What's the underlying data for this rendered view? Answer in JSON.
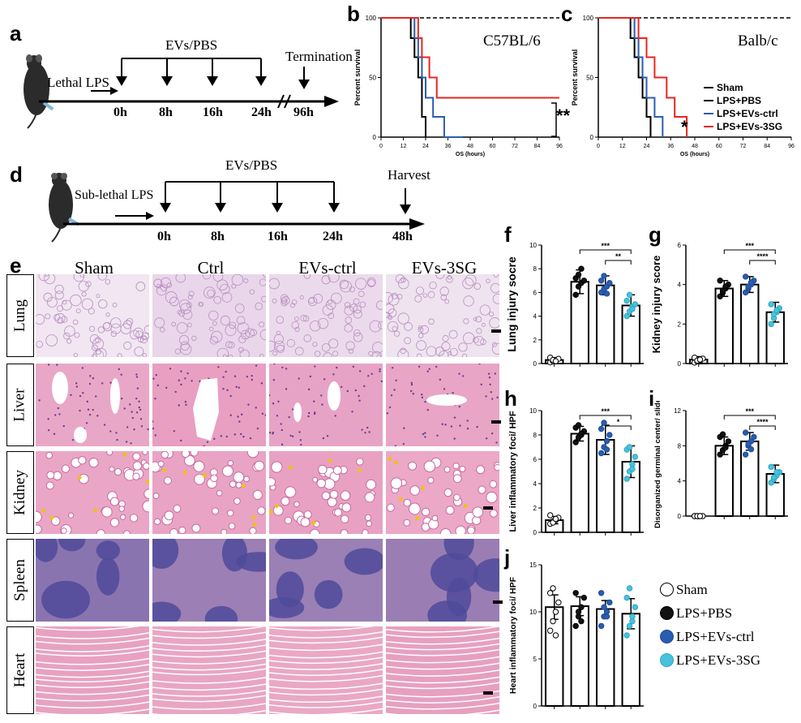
{
  "panels": {
    "a": {
      "label": "a",
      "treatment": "EVs/PBS",
      "induction": "Lethal LPS",
      "termination": "Termination",
      "timepoints": [
        "0h",
        "8h",
        "16h",
        "24h",
        "96h"
      ]
    },
    "b": {
      "label": "b",
      "strain": "C57BL/6",
      "significance": "**",
      "chart_ref": "b"
    },
    "c": {
      "label": "c",
      "strain": "Balb/c",
      "significance": "*",
      "legend": [
        "Sham",
        "LPS+PBS",
        "LPS+EVs-ctrl",
        "LPS+EVs-3SG"
      ]
    },
    "d": {
      "label": "d",
      "treatment": "EVs/PBS",
      "induction": "Sub-lethal LPS",
      "harvest": "Harvest",
      "timepoints": [
        "0h",
        "8h",
        "16h",
        "24h",
        "48h"
      ]
    },
    "e": {
      "label": "e",
      "columns": [
        "Sham",
        "Ctrl",
        "EVs-ctrl",
        "EVs-3SG"
      ],
      "rows": [
        "Lung",
        "Liver",
        "Kidney",
        "Spleen",
        "Heart"
      ]
    },
    "f": {
      "label": "f"
    },
    "g": {
      "label": "g"
    },
    "h": {
      "label": "h"
    },
    "i": {
      "label": "i"
    },
    "j": {
      "label": "j"
    }
  },
  "legend_bottom": [
    "Sham",
    "LPS+PBS",
    "LPS+EVs-ctrl",
    "LPS+EVs-3SG"
  ],
  "colors": {
    "sham": "#000000",
    "pbs": "#000000",
    "evs_ctrl": "#2a5db0",
    "evs_3sg": "#e8261f",
    "dot_pbs": "#111111",
    "dot_evs_ctrl": "#2a5db0",
    "dot_evs_3sg": "#49c2dc"
  },
  "chart_data": [
    {
      "id": "b",
      "type": "line",
      "xlabel": "OS (hours)",
      "ylabel": "Percent survival",
      "xlim": [
        0,
        96
      ],
      "ylim": [
        0,
        100
      ],
      "xticks": [
        0,
        12,
        24,
        36,
        48,
        60,
        72,
        84,
        96
      ],
      "yticks": [
        0,
        50,
        100
      ],
      "series": [
        {
          "name": "Sham",
          "style": "dashed",
          "x": [
            0,
            96
          ],
          "y": [
            100,
            100
          ]
        },
        {
          "name": "LPS+PBS",
          "x": [
            0,
            16,
            16,
            18,
            18,
            20,
            20,
            22,
            22,
            24,
            24
          ],
          "y": [
            100,
            100,
            83,
            83,
            67,
            67,
            50,
            50,
            17,
            17,
            0
          ]
        },
        {
          "name": "LPS+EVs-ctrl",
          "x": [
            0,
            18,
            18,
            20,
            20,
            22,
            22,
            24,
            24,
            28,
            28,
            34,
            34,
            44,
            44
          ],
          "y": [
            100,
            100,
            83,
            83,
            67,
            67,
            50,
            50,
            33,
            33,
            17,
            17,
            0,
            0,
            0
          ]
        },
        {
          "name": "LPS+EVs-3SG",
          "x": [
            0,
            20,
            20,
            22,
            22,
            26,
            26,
            30,
            30,
            96
          ],
          "y": [
            100,
            100,
            83,
            83,
            67,
            67,
            50,
            50,
            33,
            33
          ]
        }
      ]
    },
    {
      "id": "c",
      "type": "line",
      "xlabel": "OS (hours)",
      "ylabel": "Percent survival",
      "xlim": [
        0,
        96
      ],
      "ylim": [
        0,
        100
      ],
      "xticks": [
        0,
        12,
        24,
        36,
        48,
        60,
        72,
        84,
        96
      ],
      "yticks": [
        0,
        50,
        100
      ],
      "series": [
        {
          "name": "Sham",
          "style": "dashed",
          "x": [
            0,
            96
          ],
          "y": [
            100,
            100
          ]
        },
        {
          "name": "LPS+PBS",
          "x": [
            0,
            16,
            16,
            18,
            18,
            20,
            20,
            22,
            22,
            24,
            24,
            26,
            26
          ],
          "y": [
            100,
            100,
            83,
            83,
            67,
            67,
            50,
            50,
            33,
            33,
            17,
            17,
            0
          ]
        },
        {
          "name": "LPS+EVs-ctrl",
          "x": [
            0,
            18,
            18,
            20,
            20,
            22,
            22,
            24,
            24,
            28,
            28,
            32,
            32
          ],
          "y": [
            100,
            100,
            83,
            83,
            67,
            67,
            50,
            50,
            33,
            33,
            17,
            17,
            0
          ]
        },
        {
          "name": "LPS+EVs-3SG",
          "x": [
            0,
            20,
            20,
            24,
            24,
            28,
            28,
            34,
            34,
            38,
            38,
            44,
            44
          ],
          "y": [
            100,
            100,
            83,
            83,
            67,
            67,
            50,
            50,
            33,
            33,
            17,
            17,
            0
          ]
        }
      ]
    },
    {
      "id": "f",
      "type": "bar",
      "ylabel": "Lung injury socre",
      "ylim": [
        0,
        10
      ],
      "yticks": [
        0,
        2,
        4,
        6,
        8,
        10
      ],
      "categories": [
        "Sham",
        "LPS+PBS",
        "LPS+EVs-ctrl",
        "LPS+EVs-3SG"
      ],
      "values": [
        0.3,
        6.9,
        6.6,
        4.9
      ],
      "errors": [
        0.2,
        1.0,
        0.8,
        0.9
      ],
      "points": [
        [
          0.1,
          0.2,
          0.3,
          0.4,
          0.5,
          0.3,
          0.2
        ],
        [
          5.8,
          6.5,
          6.8,
          7.0,
          7.2,
          7.5,
          8.0
        ],
        [
          6.0,
          6.3,
          6.5,
          6.8,
          7.0,
          7.4,
          5.9
        ],
        [
          4.0,
          4.4,
          4.8,
          5.0,
          5.3,
          5.8,
          4.6
        ]
      ],
      "brackets": [
        {
          "from": 1,
          "to": 3,
          "label": "***"
        },
        {
          "from": 2,
          "to": 3,
          "label": "**"
        }
      ]
    },
    {
      "id": "g",
      "type": "bar",
      "ylabel": "Kidney injury score",
      "ylim": [
        0,
        6
      ],
      "yticks": [
        0,
        2,
        4,
        6
      ],
      "categories": [
        "Sham",
        "LPS+PBS",
        "LPS+EVs-ctrl",
        "LPS+EVs-3SG"
      ],
      "values": [
        0.2,
        3.8,
        4.0,
        2.6
      ],
      "errors": [
        0.15,
        0.4,
        0.4,
        0.5
      ],
      "points": [
        [
          0.05,
          0.1,
          0.2,
          0.25,
          0.3,
          0.15,
          0.2
        ],
        [
          3.4,
          3.6,
          3.8,
          4.0,
          4.2,
          3.7,
          3.9
        ],
        [
          3.6,
          3.8,
          4.0,
          4.2,
          4.4,
          3.9,
          4.1
        ],
        [
          2.0,
          2.3,
          2.6,
          2.8,
          3.0,
          2.5,
          2.7
        ]
      ],
      "brackets": [
        {
          "from": 1,
          "to": 3,
          "label": "***"
        },
        {
          "from": 2,
          "to": 3,
          "label": "****"
        }
      ]
    },
    {
      "id": "h",
      "type": "bar",
      "ylabel": "Liver inflammatory foci/ HPF",
      "ylim": [
        0,
        10
      ],
      "yticks": [
        0,
        2,
        4,
        6,
        8,
        10
      ],
      "categories": [
        "Sham",
        "LPS+PBS",
        "LPS+EVs-ctrl",
        "LPS+EVs-3SG"
      ],
      "values": [
        1.0,
        8.1,
        7.6,
        5.8
      ],
      "errors": [
        0.3,
        0.6,
        1.2,
        1.3
      ],
      "points": [
        [
          0.7,
          0.9,
          1.0,
          1.2,
          1.4,
          0.8,
          1.1
        ],
        [
          7.4,
          7.8,
          8.0,
          8.3,
          8.6,
          8.8,
          8.1
        ],
        [
          6.5,
          7.0,
          7.5,
          8.0,
          8.5,
          9.0,
          6.8
        ],
        [
          4.4,
          5.0,
          5.6,
          6.2,
          6.8,
          7.0,
          5.2
        ]
      ],
      "brackets": [
        {
          "from": 1,
          "to": 3,
          "label": "***"
        },
        {
          "from": 2,
          "to": 3,
          "label": "*"
        }
      ]
    },
    {
      "id": "i",
      "type": "bar",
      "ylabel": "Disorganized germinal center/ slide",
      "ylim": [
        0,
        12
      ],
      "yticks": [
        0,
        4,
        8,
        12
      ],
      "categories": [
        "Sham",
        "LPS+PBS",
        "LPS+EVs-ctrl",
        "LPS+EVs-3SG"
      ],
      "values": [
        0.0,
        8.0,
        8.5,
        4.8
      ],
      "errors": [
        0.1,
        1.0,
        1.0,
        1.0
      ],
      "points": [
        [
          0,
          0,
          0,
          0,
          0,
          0,
          0
        ],
        [
          7.0,
          7.5,
          8.0,
          8.5,
          9.0,
          9.3,
          7.8
        ],
        [
          7.0,
          8.0,
          8.5,
          9.0,
          9.5,
          8.2,
          7.6
        ],
        [
          3.8,
          4.2,
          4.6,
          5.0,
          5.6,
          4.4,
          5.0
        ]
      ],
      "brackets": [
        {
          "from": 1,
          "to": 3,
          "label": "***"
        },
        {
          "from": 2,
          "to": 3,
          "label": "****"
        }
      ]
    },
    {
      "id": "j",
      "type": "bar",
      "ylabel": "Heart inflammatory foci/ HPF",
      "ylim": [
        0,
        15
      ],
      "yticks": [
        0,
        5,
        10,
        15
      ],
      "categories": [
        "Sham",
        "LPS+PBS",
        "LPS+EVs-ctrl",
        "LPS+EVs-3SG"
      ],
      "values": [
        10.5,
        10.6,
        10.3,
        9.8
      ],
      "errors": [
        1.3,
        1.0,
        0.9,
        1.6
      ],
      "points": [
        [
          8.0,
          9.0,
          10.0,
          11.0,
          12.0,
          12.5,
          7.5
        ],
        [
          8.5,
          9.5,
          10.5,
          11.5,
          12.0,
          10.0,
          9.0
        ],
        [
          8.5,
          9.5,
          10.0,
          11.0,
          12.0,
          10.5,
          9.5
        ],
        [
          7.5,
          8.5,
          9.5,
          10.5,
          11.5,
          12.5,
          9.0
        ]
      ],
      "brackets": []
    }
  ]
}
